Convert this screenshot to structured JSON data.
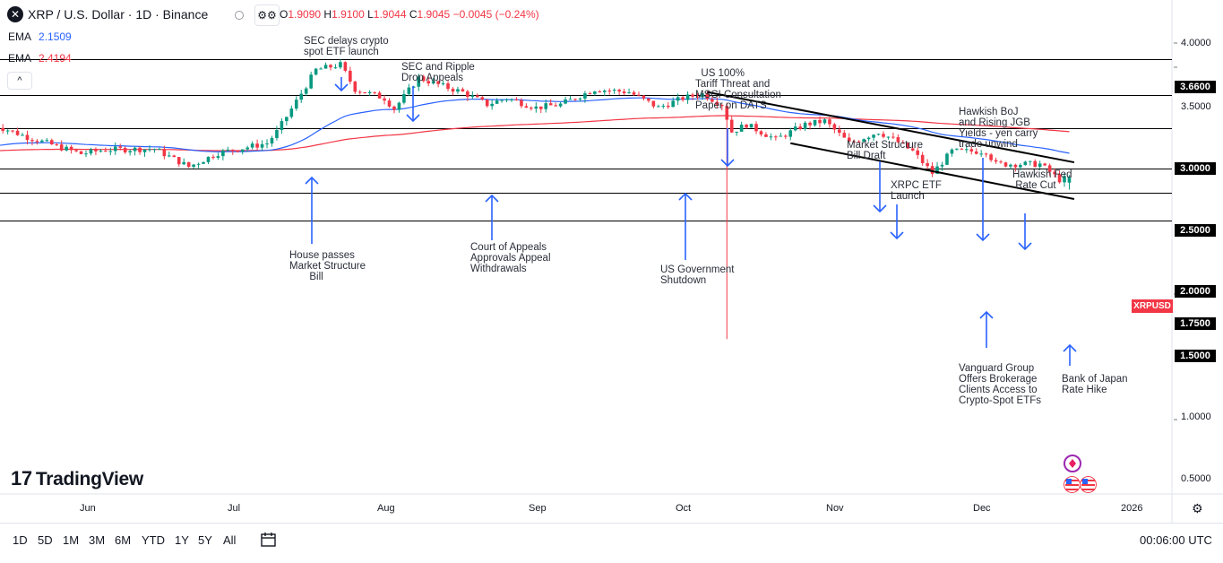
{
  "header": {
    "symbol_title": "XRP / U.S. Dollar · 1D · Binance",
    "btn_icon": "⚙⚙",
    "open_label": "O",
    "open": "1.9090",
    "high_label": "H",
    "high": "1.9100",
    "low_label": "L",
    "low": "1.9044",
    "close_label": "C",
    "close": "1.9045",
    "change": "−0.0045 (−0.24%)"
  },
  "indicators": [
    {
      "label": "EMA",
      "value": "2.1509",
      "color": "#2962ff"
    },
    {
      "label": "EMA",
      "value": "2.4194",
      "color": "#f23645"
    }
  ],
  "collapse_glyph": "^",
  "price_axis": {
    "ticks": [
      "4.0000",
      "3.5000",
      "3.0000",
      "2.5000",
      "2.0000",
      "1.7500",
      "1.5000",
      "1.0000",
      "0.5000"
    ],
    "level_badges": [
      "3.6600",
      "3.0000",
      "2.5000",
      "2.0000",
      "1.7500",
      "1.5000"
    ],
    "symbol_badge": "XRPUSD"
  },
  "time_axis": [
    "Jun",
    "Jul",
    "Aug",
    "Sep",
    "Oct",
    "Nov",
    "Dec",
    "2026"
  ],
  "annotations": [
    "SEC delays crypto\nspot ETF launch",
    "SEC and Ripple\nDrop Appeals",
    "  US 100%\nTariff Threat and\nMSCI Consultation\nPaper on DATS",
    "Hawkish BoJ\nand Rising JGB\nYields - yen carry\ntrade unwind",
    "Market Structure\nBill Draft",
    "XRPC ETF\nLaunch",
    "Hawkish Fed\n Rate Cut",
    "House passes\nMarket Structure\n       Bill",
    "Court of Appeals\nApprovals Appeal\nWithdrawals",
    "US Government\nShutdown",
    "Vanguard Group\nOffers Brokerage\nClients Access to\nCrypto-Spot ETFs",
    "Bank of Japan\nRate Hike"
  ],
  "branding": "TradingView",
  "range_buttons": [
    "1D",
    "5D",
    "1M",
    "3M",
    "6M",
    "YTD",
    "1Y",
    "5Y",
    "All"
  ],
  "clock": "00:06:00 UTC",
  "colors": {
    "up": "#089981",
    "down": "#f23645",
    "ema_fast": "#2962ff",
    "ema_slow": "#f23645",
    "arrow": "#2962ff"
  },
  "chart_data": {
    "type": "candlestick",
    "symbol": "XRPUSD",
    "interval": "1D",
    "y_scale": "log",
    "ylim": [
      0.42,
      4.4
    ],
    "x_range": [
      "2025-05-13",
      "2026-01-16"
    ],
    "horizontal_levels": [
      3.66,
      3.0,
      2.5,
      2.0,
      1.75,
      1.5
    ],
    "ema_fast_last": 2.1509,
    "ema_slow_last": 2.4194,
    "last_price": 1.9045,
    "ohlc_anchors": [
      {
        "date": "2025-05-13",
        "close": 2.55
      },
      {
        "date": "2025-05-20",
        "close": 2.38
      },
      {
        "date": "2025-05-31",
        "close": 2.17
      },
      {
        "date": "2025-06-05",
        "close": 2.22
      },
      {
        "date": "2025-06-15",
        "close": 2.23
      },
      {
        "date": "2025-06-22",
        "close": 2.02
      },
      {
        "date": "2025-06-28",
        "close": 2.18
      },
      {
        "date": "2025-07-08",
        "close": 2.3
      },
      {
        "date": "2025-07-10",
        "close": 2.45
      },
      {
        "date": "2025-07-14",
        "close": 2.9
      },
      {
        "date": "2025-07-18",
        "close": 3.45
      },
      {
        "date": "2025-07-23",
        "close": 3.55
      },
      {
        "date": "2025-07-26",
        "close": 3.1
      },
      {
        "date": "2025-08-01",
        "close": 2.95
      },
      {
        "date": "2025-08-03",
        "close": 2.78
      },
      {
        "date": "2025-08-08",
        "close": 3.3
      },
      {
        "date": "2025-08-13",
        "close": 3.15
      },
      {
        "date": "2025-08-17",
        "close": 3.05
      },
      {
        "date": "2025-08-22",
        "close": 2.85
      },
      {
        "date": "2025-08-26",
        "close": 2.95
      },
      {
        "date": "2025-09-01",
        "close": 2.8
      },
      {
        "date": "2025-09-06",
        "close": 2.85
      },
      {
        "date": "2025-09-13",
        "close": 3.1
      },
      {
        "date": "2025-09-20",
        "close": 3.05
      },
      {
        "date": "2025-09-26",
        "close": 2.8
      },
      {
        "date": "2025-10-01",
        "close": 2.95
      },
      {
        "date": "2025-10-05",
        "close": 3.02
      },
      {
        "date": "2025-10-09",
        "close": 2.85
      },
      {
        "date": "2025-10-11",
        "close": 2.45
      },
      {
        "date": "2025-10-14",
        "close": 2.55
      },
      {
        "date": "2025-10-20",
        "close": 2.35
      },
      {
        "date": "2025-10-26",
        "close": 2.55
      },
      {
        "date": "2025-10-30",
        "close": 2.6
      },
      {
        "date": "2025-11-04",
        "close": 2.3
      },
      {
        "date": "2025-11-10",
        "close": 2.45
      },
      {
        "date": "2025-11-13",
        "close": 2.35
      },
      {
        "date": "2025-11-17",
        "close": 2.2
      },
      {
        "date": "2025-11-21",
        "close": 1.95
      },
      {
        "date": "2025-11-25",
        "close": 2.2
      },
      {
        "date": "2025-12-02",
        "close": 2.2
      },
      {
        "date": "2025-12-04",
        "close": 2.05
      },
      {
        "date": "2025-12-09",
        "close": 2.05
      },
      {
        "date": "2025-12-13",
        "close": 2.05
      },
      {
        "date": "2025-12-17",
        "close": 1.88
      },
      {
        "date": "2025-12-19",
        "close": 1.9
      }
    ],
    "trendlines": [
      {
        "from": {
          "date": "2025-10-06",
          "price": 3.05
        },
        "to": {
          "date": "2025-12-20",
          "price": 2.07
        }
      },
      {
        "from": {
          "date": "2025-10-23",
          "price": 2.3
        },
        "to": {
          "date": "2025-12-20",
          "price": 1.69
        }
      }
    ]
  }
}
